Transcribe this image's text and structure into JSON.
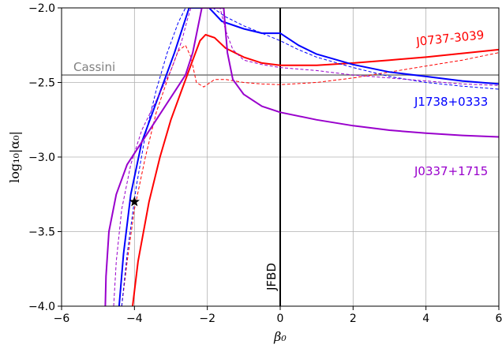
{
  "chart_data": {
    "type": "line",
    "title": "",
    "xlabel": "β₀",
    "ylabel": "log₁₀|α₀|",
    "xlim": [
      -6,
      6
    ],
    "ylim": [
      -4.0,
      -2.0
    ],
    "xticks": [
      "−6",
      "−4",
      "−2",
      "0",
      "2",
      "4",
      "6"
    ],
    "yticks": [
      "−4.0",
      "−3.5",
      "−3.0",
      "−2.5",
      "−2.0"
    ],
    "grid": true,
    "reference_lines": [
      {
        "label": "Cassini",
        "orientation": "horizontal",
        "value": -2.45,
        "color": "#808080"
      },
      {
        "label": "JFBD",
        "orientation": "vertical",
        "value": 0,
        "color": "#000000"
      }
    ],
    "marker": {
      "symbol": "star",
      "x": -4.0,
      "y": -3.3,
      "color": "#000000"
    },
    "series": [
      {
        "name": "J0737-3039",
        "color": "#ff0000",
        "style": "solid",
        "points": [
          [
            -4.05,
            -4.0
          ],
          [
            -3.9,
            -3.7
          ],
          [
            -3.6,
            -3.3
          ],
          [
            -3.3,
            -3.0
          ],
          [
            -3.0,
            -2.75
          ],
          [
            -2.7,
            -2.55
          ],
          [
            -2.4,
            -2.35
          ],
          [
            -2.2,
            -2.22
          ],
          [
            -2.05,
            -2.18
          ],
          [
            -1.8,
            -2.2
          ],
          [
            -1.5,
            -2.27
          ],
          [
            -1.0,
            -2.33
          ],
          [
            -0.5,
            -2.37
          ],
          [
            0,
            -2.385
          ],
          [
            1,
            -2.385
          ],
          [
            2,
            -2.37
          ],
          [
            3,
            -2.35
          ],
          [
            4,
            -2.33
          ],
          [
            5,
            -2.305
          ],
          [
            6,
            -2.28
          ]
        ]
      },
      {
        "name": "J0737-3039 (dashed)",
        "color": "#ff0000",
        "style": "dashed",
        "points": [
          [
            -4.35,
            -4.0
          ],
          [
            -4.2,
            -3.7
          ],
          [
            -4.0,
            -3.35
          ],
          [
            -3.7,
            -3.0
          ],
          [
            -3.4,
            -2.7
          ],
          [
            -3.05,
            -2.45
          ],
          [
            -2.8,
            -2.29
          ],
          [
            -2.6,
            -2.25
          ],
          [
            -2.45,
            -2.33
          ],
          [
            -2.3,
            -2.5
          ],
          [
            -2.1,
            -2.53
          ],
          [
            -1.8,
            -2.48
          ],
          [
            -1.5,
            -2.48
          ],
          [
            -1.0,
            -2.5
          ],
          [
            -0.5,
            -2.51
          ],
          [
            0,
            -2.515
          ],
          [
            1,
            -2.5
          ],
          [
            2,
            -2.47
          ],
          [
            3,
            -2.43
          ],
          [
            4,
            -2.39
          ],
          [
            5,
            -2.35
          ],
          [
            6,
            -2.3
          ]
        ]
      },
      {
        "name": "J1738+0333",
        "color": "#0000ff",
        "style": "solid",
        "points": [
          [
            -4.42,
            -4.0
          ],
          [
            -4.3,
            -3.65
          ],
          [
            -4.1,
            -3.25
          ],
          [
            -3.8,
            -2.9
          ],
          [
            -3.5,
            -2.7
          ],
          [
            -3.2,
            -2.5
          ],
          [
            -2.9,
            -2.3
          ],
          [
            -2.7,
            -2.15
          ],
          [
            -2.5,
            -2.0
          ],
          [
            -1.95,
            -2.0
          ],
          [
            -1.6,
            -2.09
          ],
          [
            -1.0,
            -2.14
          ],
          [
            -0.5,
            -2.17
          ],
          [
            0,
            -2.17
          ],
          [
            0.5,
            -2.25
          ],
          [
            1,
            -2.31
          ],
          [
            2,
            -2.38
          ],
          [
            3,
            -2.43
          ],
          [
            4,
            -2.46
          ],
          [
            5,
            -2.49
          ],
          [
            6,
            -2.51
          ]
        ]
      },
      {
        "name": "J1738+0333 (dashed)",
        "color": "#0000ff",
        "style": "dashed",
        "points": [
          [
            -4.35,
            -4.0
          ],
          [
            -4.2,
            -3.65
          ],
          [
            -3.95,
            -3.2
          ],
          [
            -3.7,
            -2.85
          ],
          [
            -3.4,
            -2.55
          ],
          [
            -3.1,
            -2.3
          ],
          [
            -2.8,
            -2.1
          ],
          [
            -2.6,
            -2.0
          ],
          [
            -1.85,
            -2.0
          ],
          [
            -1.5,
            -2.06
          ],
          [
            -1.0,
            -2.12
          ],
          [
            -0.5,
            -2.17
          ],
          [
            0,
            -2.22
          ],
          [
            0.5,
            -2.28
          ],
          [
            1,
            -2.33
          ],
          [
            2,
            -2.4
          ],
          [
            3,
            -2.46
          ],
          [
            4,
            -2.5
          ],
          [
            5,
            -2.525
          ],
          [
            6,
            -2.545
          ]
        ]
      },
      {
        "name": "J0337+1715",
        "color": "#9900cc",
        "style": "solid",
        "points": [
          [
            -4.8,
            -4.0
          ],
          [
            -4.78,
            -3.8
          ],
          [
            -4.7,
            -3.5
          ],
          [
            -4.5,
            -3.25
          ],
          [
            -4.2,
            -3.05
          ],
          [
            -3.8,
            -2.9
          ],
          [
            -3.4,
            -2.75
          ],
          [
            -3.0,
            -2.6
          ],
          [
            -2.6,
            -2.45
          ],
          [
            -2.4,
            -2.3
          ],
          [
            -2.25,
            -2.12
          ],
          [
            -2.15,
            -2.0
          ],
          [
            -1.55,
            -2.0
          ],
          [
            -1.45,
            -2.3
          ],
          [
            -1.3,
            -2.48
          ],
          [
            -1.0,
            -2.58
          ],
          [
            -0.5,
            -2.66
          ],
          [
            0,
            -2.7
          ],
          [
            1,
            -2.75
          ],
          [
            2,
            -2.79
          ],
          [
            3,
            -2.82
          ],
          [
            4,
            -2.84
          ],
          [
            5,
            -2.855
          ],
          [
            6,
            -2.865
          ]
        ]
      },
      {
        "name": "J0337+1715 (dashed)",
        "color": "#9900cc",
        "style": "dashed",
        "points": [
          [
            -4.57,
            -4.0
          ],
          [
            -4.5,
            -3.7
          ],
          [
            -4.35,
            -3.35
          ],
          [
            -4.1,
            -3.05
          ],
          [
            -3.8,
            -2.82
          ],
          [
            -3.4,
            -2.62
          ],
          [
            -3.0,
            -2.42
          ],
          [
            -2.7,
            -2.22
          ],
          [
            -2.55,
            -2.08
          ],
          [
            -2.45,
            -2.0
          ],
          [
            -1.65,
            -2.0
          ],
          [
            -1.5,
            -2.15
          ],
          [
            -1.3,
            -2.28
          ],
          [
            -1.0,
            -2.35
          ],
          [
            -0.5,
            -2.38
          ],
          [
            0,
            -2.4
          ],
          [
            1,
            -2.42
          ],
          [
            2,
            -2.45
          ],
          [
            3,
            -2.47
          ],
          [
            4,
            -2.49
          ],
          [
            5,
            -2.51
          ],
          [
            6,
            -2.52
          ]
        ]
      }
    ],
    "curve_labels": [
      {
        "text": "J0737-3039",
        "color": "#ff0000"
      },
      {
        "text": "J1738+0333",
        "color": "#0000ff"
      },
      {
        "text": "J0337+1715",
        "color": "#9900cc"
      }
    ]
  }
}
